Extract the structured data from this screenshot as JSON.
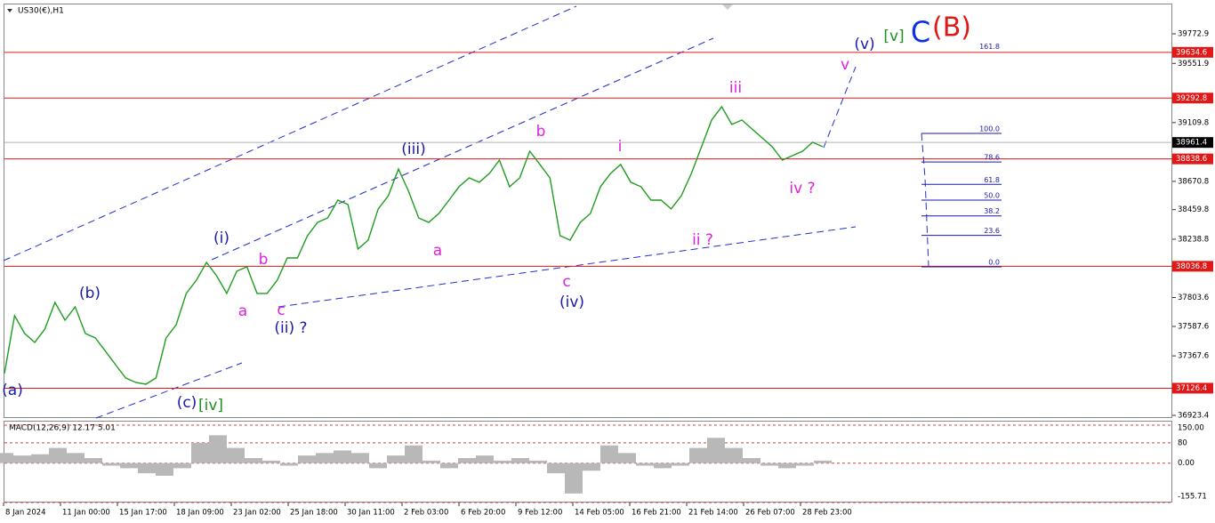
{
  "title": "US30(€),H1",
  "price_chart": {
    "type": "line",
    "color": "#1e9e1e",
    "values": [
      37236,
      37668,
      37535,
      37468,
      37568,
      37767,
      37634,
      37734,
      37535,
      37501,
      37402,
      37302,
      37203,
      37169,
      37156,
      37203,
      37501,
      37601,
      37834,
      37933,
      38066,
      37966,
      37834,
      38000,
      38033,
      37834,
      37834,
      37933,
      38099,
      38099,
      38265,
      38365,
      38398,
      38531,
      38498,
      38166,
      38232,
      38465,
      38564,
      38763,
      38597,
      38398,
      38365,
      38431,
      38531,
      38631,
      38697,
      38664,
      38730,
      38830,
      38631,
      38697,
      38896,
      38797,
      38697,
      38265,
      38232,
      38365,
      38431,
      38631,
      38730,
      38797,
      38664,
      38631,
      38531,
      38531,
      38465,
      38564,
      38730,
      38929,
      39129,
      39228,
      39096,
      39129,
      39062,
      38996,
      38929,
      38830,
      38863,
      38896,
      38963,
      38929
    ],
    "ylim": [
      36903.5,
      39998.7
    ],
    "yticks": [
      39772.9,
      39551.9,
      39109.8,
      38670.8,
      38459.8,
      38238.8,
      37803.6,
      37587.6,
      37367.6,
      36923.4
    ],
    "xtick_labels": [
      "8 Jan 2024",
      "11 Jan 00:00",
      "15 Jan 17:00",
      "18 Jan 09:00",
      "23 Jan 02:00",
      "25 Jan 18:00",
      "30 Jan 11:00",
      "2 Feb 03:00",
      "6 Feb 20:00",
      "9 Feb 12:00",
      "14 Feb 05:00",
      "16 Feb 21:00",
      "21 Feb 14:00",
      "26 Feb 07:00",
      "28 Feb 23:00"
    ],
    "levels": [
      39634.6,
      39292.8,
      38838.6,
      38036.8,
      37126.4
    ],
    "level_color": "#e01818",
    "current_price": 38961.4
  },
  "wave_labels": [
    "(a)",
    "(b)",
    "(c)",
    "[iv]",
    "(i)",
    "a",
    "b",
    "c",
    "(ii) ?",
    "(iii)",
    "a",
    "b",
    "c",
    "(iv)",
    "i",
    "ii ?",
    "iii",
    "iv ?",
    "v",
    "(v)",
    "[v]",
    "C",
    "(B)"
  ],
  "fibonacci": {
    "levels": [
      161.8,
      {
        "value": 100,
        "label": "100.0"
      },
      78.6,
      61.8,
      {
        "value": 50,
        "label": "50.0"
      },
      38.2,
      23.6,
      {
        "value": 0,
        "label": "0.0"
      }
    ]
  },
  "macd": {
    "label": "MACD(12,26,9) 12.17 5.01",
    "color": "#b8b8b8",
    "histogram": [
      40,
      30,
      35,
      60,
      40,
      20,
      -10,
      -20,
      -40,
      -50,
      -20,
      80,
      110,
      60,
      20,
      10,
      -10,
      30,
      40,
      50,
      40,
      -20,
      30,
      70,
      10,
      -20,
      20,
      30,
      10,
      20,
      10,
      -40,
      -120,
      -30,
      70,
      40,
      -10,
      -20,
      -10,
      60,
      100,
      60,
      20,
      -10,
      -20,
      -10,
      10
    ],
    "ylim": [
      -155.71,
      150
    ],
    "yticks": [
      {
        "value": 150,
        "label": "150.00"
      },
      80,
      {
        "value": 0,
        "label": "0.00"
      },
      -155.71
    ]
  }
}
